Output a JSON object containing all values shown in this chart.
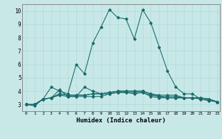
{
  "xlabel": "Humidex (Indice chaleur)",
  "ylabel": "",
  "background_color": "#c8e8e8",
  "grid_color": "#b0d8d8",
  "line_color": "#1a6b6b",
  "xlim": [
    -0.5,
    23.3
  ],
  "ylim": [
    2.5,
    10.5
  ],
  "xticks": [
    0,
    1,
    2,
    3,
    4,
    5,
    6,
    7,
    8,
    9,
    10,
    11,
    12,
    13,
    14,
    15,
    16,
    17,
    18,
    19,
    20,
    21,
    22,
    23
  ],
  "yticks": [
    3,
    4,
    5,
    6,
    7,
    8,
    9,
    10
  ],
  "series": [
    [
      3.0,
      2.9,
      3.4,
      4.3,
      4.0,
      3.8,
      6.0,
      5.3,
      7.6,
      8.8,
      10.1,
      9.5,
      9.4,
      7.9,
      10.1,
      9.1,
      7.3,
      5.5,
      4.3,
      3.8,
      3.8,
      3.4,
      3.3,
      3.2
    ],
    [
      3.0,
      3.0,
      3.4,
      3.5,
      4.1,
      3.6,
      3.6,
      4.3,
      4.0,
      3.8,
      3.8,
      3.9,
      3.9,
      3.9,
      3.9,
      3.7,
      3.6,
      3.5,
      3.5,
      3.5,
      3.5,
      3.5,
      3.4,
      3.2
    ],
    [
      3.0,
      3.0,
      3.4,
      3.5,
      3.7,
      3.6,
      3.6,
      3.6,
      3.6,
      3.6,
      3.8,
      3.9,
      3.9,
      3.8,
      3.9,
      3.6,
      3.5,
      3.5,
      3.5,
      3.5,
      3.5,
      3.4,
      3.3,
      3.2
    ],
    [
      3.0,
      3.0,
      3.4,
      3.5,
      3.8,
      3.7,
      3.7,
      3.7,
      3.8,
      3.8,
      3.9,
      4.0,
      4.0,
      4.0,
      4.0,
      3.8,
      3.6,
      3.6,
      3.6,
      3.5,
      3.5,
      3.5,
      3.4,
      3.2
    ],
    [
      3.0,
      3.0,
      3.4,
      3.5,
      3.8,
      3.7,
      3.7,
      3.7,
      3.8,
      3.8,
      3.9,
      4.0,
      4.0,
      4.0,
      4.0,
      3.8,
      3.7,
      3.7,
      3.7,
      3.5,
      3.5,
      3.5,
      3.4,
      3.2
    ]
  ]
}
